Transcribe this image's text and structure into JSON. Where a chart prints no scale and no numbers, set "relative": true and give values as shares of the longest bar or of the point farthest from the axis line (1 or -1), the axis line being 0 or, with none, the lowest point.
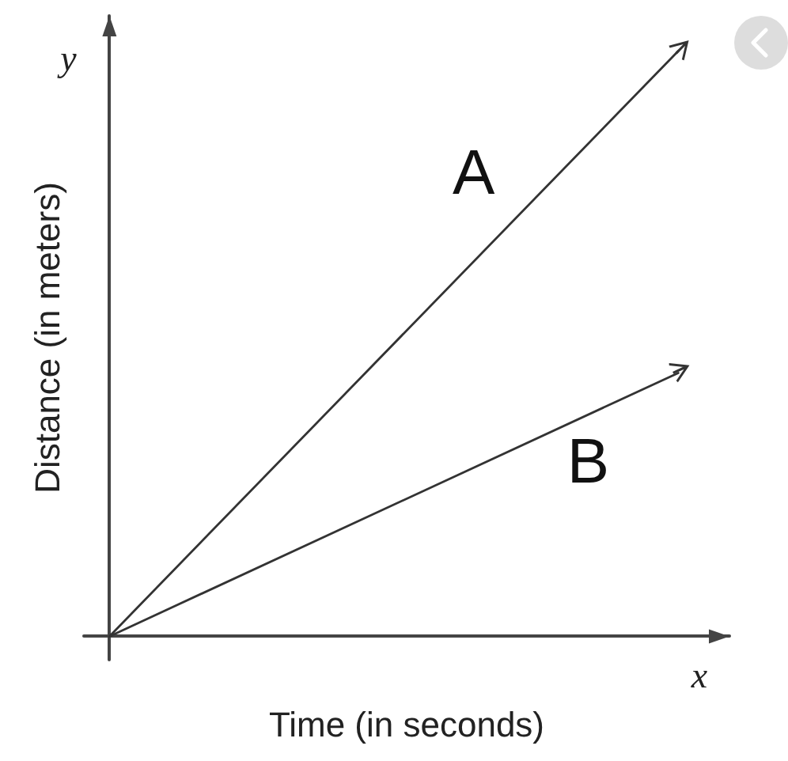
{
  "chart_data": {
    "type": "line",
    "relative": true,
    "xlabel": "Time (in seconds)",
    "ylabel": "Distance (in meters)",
    "annotations": [
      "y",
      "x"
    ],
    "categories": [
      null,
      null
    ],
    "series": [
      {
        "name": "A",
        "color": "#333333",
        "values": [
          0,
          1
        ]
      },
      {
        "name": "B",
        "color": "#333333",
        "values": [
          0,
          0.45
        ]
      }
    ],
    "grid": false,
    "legend": false
  }
}
